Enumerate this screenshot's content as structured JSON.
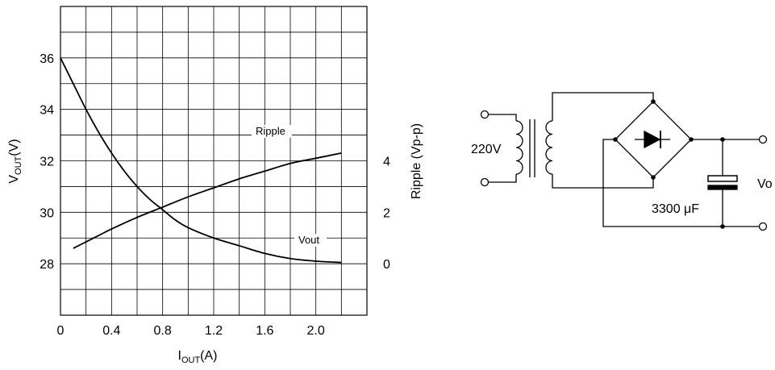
{
  "chart_data": {
    "type": "line",
    "xlabel": {
      "main": "I",
      "sub": "OUT",
      "unit": "(A)"
    },
    "ylabel_left": {
      "main": "V",
      "sub": "OUT",
      "unit": "(V)"
    },
    "ylabel_right": "Ripple (Vp-p)",
    "xlim": [
      0,
      2.4
    ],
    "ylim_left": [
      26,
      38
    ],
    "ylim_right": [
      -2,
      10
    ],
    "grid": true,
    "x_ticks": [
      "0",
      "0.4",
      "0.8",
      "1.2",
      "1.6",
      "2.0"
    ],
    "y_ticks_left": [
      "28",
      "30",
      "32",
      "34",
      "36"
    ],
    "y_ticks_right": [
      "0",
      "2",
      "4"
    ],
    "series": [
      {
        "name": "Vout",
        "axis": "left",
        "x": [
          0.0,
          0.1,
          0.2,
          0.3,
          0.4,
          0.5,
          0.6,
          0.7,
          0.8,
          0.9,
          1.0,
          1.2,
          1.4,
          1.6,
          1.8,
          2.0,
          2.2
        ],
        "y": [
          36.0,
          35.0,
          34.0,
          33.1,
          32.3,
          31.6,
          31.0,
          30.5,
          30.1,
          29.7,
          29.4,
          29.0,
          28.7,
          28.4,
          28.2,
          28.1,
          28.05
        ]
      },
      {
        "name": "Ripple",
        "axis": "right",
        "x": [
          0.1,
          0.2,
          0.3,
          0.4,
          0.6,
          0.8,
          1.0,
          1.2,
          1.4,
          1.6,
          1.8,
          2.0,
          2.2
        ],
        "y": [
          0.6,
          0.85,
          1.1,
          1.35,
          1.8,
          2.2,
          2.6,
          2.95,
          3.3,
          3.6,
          3.9,
          4.1,
          4.3
        ]
      }
    ]
  },
  "circuit": {
    "input_label": "220V",
    "capacitor_label": "3300 μF",
    "output_label": "Vo"
  }
}
